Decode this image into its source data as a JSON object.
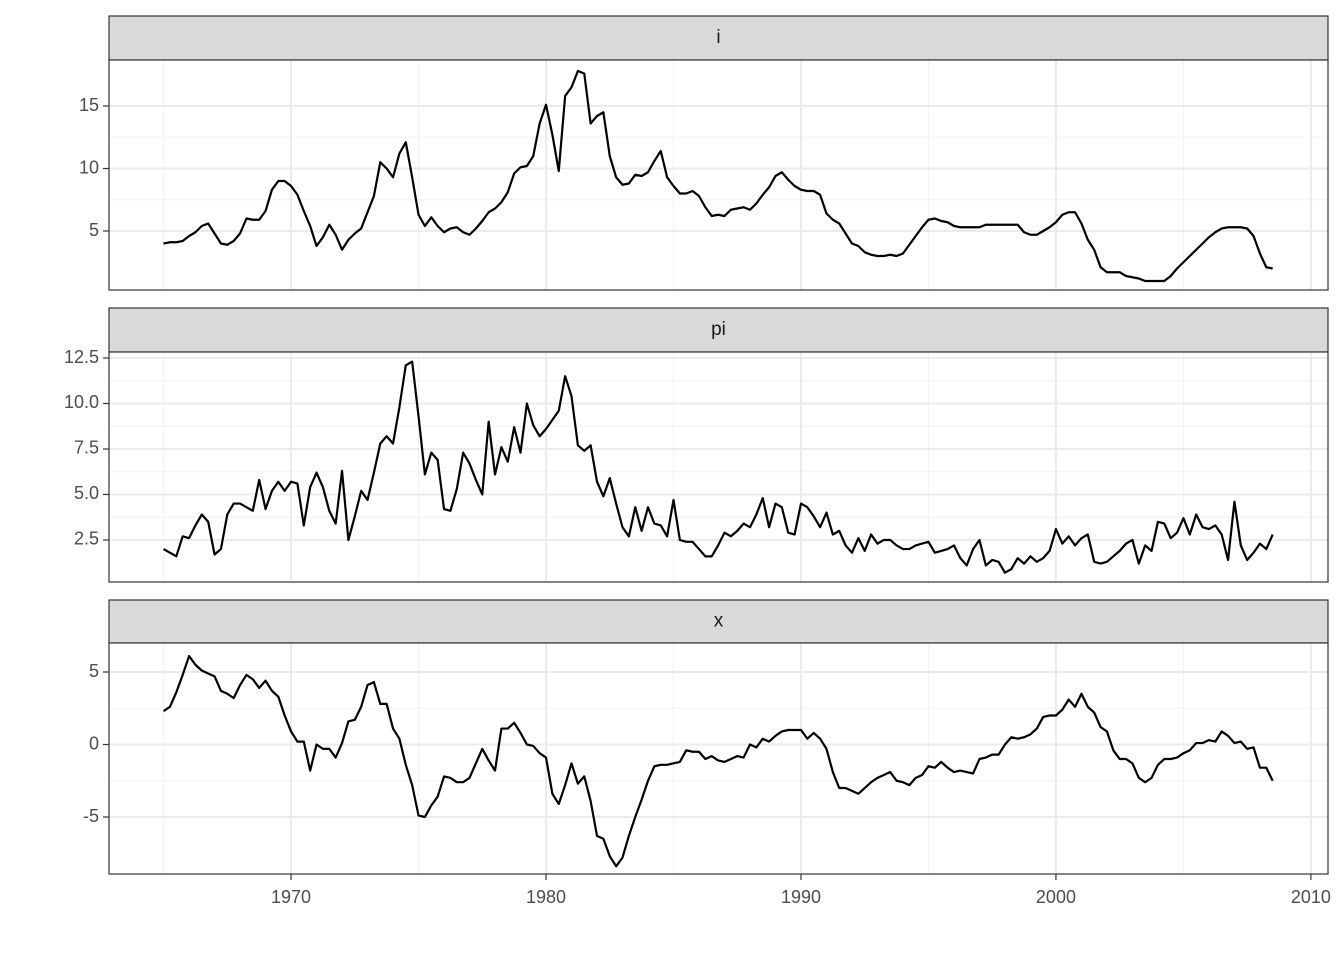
{
  "chart_data": {
    "type": "line",
    "color": "#000000",
    "grid": true,
    "xlim": [
      1962.86,
      2010.67
    ],
    "xticks": [
      1970,
      1980,
      1990,
      2000,
      2010
    ],
    "x": [
      1965,
      1965.25,
      1965.5,
      1965.75,
      1966,
      1966.25,
      1966.5,
      1966.75,
      1967,
      1967.25,
      1967.5,
      1967.75,
      1968,
      1968.25,
      1968.5,
      1968.75,
      1969,
      1969.25,
      1969.5,
      1969.75,
      1970,
      1970.25,
      1970.5,
      1970.75,
      1971,
      1971.25,
      1971.5,
      1971.75,
      1972,
      1972.25,
      1972.5,
      1972.75,
      1973,
      1973.25,
      1973.5,
      1973.75,
      1974,
      1974.25,
      1974.5,
      1974.75,
      1975,
      1975.25,
      1975.5,
      1975.75,
      1976,
      1976.25,
      1976.5,
      1976.75,
      1977,
      1977.25,
      1977.5,
      1977.75,
      1978,
      1978.25,
      1978.5,
      1978.75,
      1979,
      1979.25,
      1979.5,
      1979.75,
      1980,
      1980.25,
      1980.5,
      1980.75,
      1981,
      1981.25,
      1981.5,
      1981.75,
      1982,
      1982.25,
      1982.5,
      1982.75,
      1983,
      1983.25,
      1983.5,
      1983.75,
      1984,
      1984.25,
      1984.5,
      1984.75,
      1985,
      1985.25,
      1985.5,
      1985.75,
      1986,
      1986.25,
      1986.5,
      1986.75,
      1987,
      1987.25,
      1987.5,
      1987.75,
      1988,
      1988.25,
      1988.5,
      1988.75,
      1989,
      1989.25,
      1989.5,
      1989.75,
      1990,
      1990.25,
      1990.5,
      1990.75,
      1991,
      1991.25,
      1991.5,
      1991.75,
      1992,
      1992.25,
      1992.5,
      1992.75,
      1993,
      1993.25,
      1993.5,
      1993.75,
      1994,
      1994.25,
      1994.5,
      1994.75,
      1995,
      1995.25,
      1995.5,
      1995.75,
      1996,
      1996.25,
      1996.5,
      1996.75,
      1997,
      1997.25,
      1997.5,
      1997.75,
      1998,
      1998.25,
      1998.5,
      1998.75,
      1999,
      1999.25,
      1999.5,
      1999.75,
      2000,
      2000.25,
      2000.5,
      2000.75,
      2001,
      2001.25,
      2001.5,
      2001.75,
      2002,
      2002.25,
      2002.5,
      2002.75,
      2003,
      2003.25,
      2003.5,
      2003.75,
      2004,
      2004.25,
      2004.5,
      2004.75,
      2005,
      2005.25,
      2005.5,
      2005.75,
      2006,
      2006.25,
      2006.5,
      2006.75,
      2007,
      2007.25,
      2007.5,
      2007.75,
      2008,
      2008.25,
      2008.5
    ],
    "panels": [
      {
        "name": "i",
        "ylim": [
          0.28,
          18.68
        ],
        "yticks": [
          5,
          10,
          15
        ],
        "values": [
          4.0,
          4.1,
          4.1,
          4.2,
          4.6,
          4.9,
          5.4,
          5.6,
          4.8,
          4.0,
          3.9,
          4.2,
          4.8,
          6.0,
          5.9,
          5.9,
          6.6,
          8.3,
          9.0,
          9.0,
          8.6,
          7.9,
          6.6,
          5.4,
          3.8,
          4.5,
          5.5,
          4.7,
          3.5,
          4.3,
          4.8,
          5.2,
          6.5,
          7.8,
          10.5,
          10.0,
          9.3,
          11.2,
          12.1,
          9.3,
          6.3,
          5.4,
          6.1,
          5.4,
          4.9,
          5.2,
          5.3,
          4.9,
          4.7,
          5.2,
          5.8,
          6.5,
          6.8,
          7.3,
          8.1,
          9.6,
          10.1,
          10.2,
          11.0,
          13.6,
          15.1,
          12.7,
          9.8,
          15.8,
          16.5,
          17.8,
          17.6,
          13.6,
          14.2,
          14.5,
          11.0,
          9.3,
          8.7,
          8.8,
          9.5,
          9.4,
          9.7,
          10.6,
          11.4,
          9.3,
          8.6,
          8.0,
          8.0,
          8.2,
          7.8,
          6.9,
          6.2,
          6.3,
          6.2,
          6.7,
          6.8,
          6.9,
          6.7,
          7.2,
          7.9,
          8.5,
          9.4,
          9.7,
          9.1,
          8.6,
          8.3,
          8.2,
          8.2,
          7.9,
          6.4,
          5.9,
          5.6,
          4.8,
          4.0,
          3.8,
          3.3,
          3.1,
          3.0,
          3.0,
          3.1,
          3.0,
          3.2,
          3.9,
          4.6,
          5.3,
          5.9,
          6.0,
          5.8,
          5.7,
          5.4,
          5.3,
          5.3,
          5.3,
          5.3,
          5.5,
          5.5,
          5.5,
          5.5,
          5.5,
          5.5,
          4.9,
          4.7,
          4.7,
          5.0,
          5.3,
          5.7,
          6.3,
          6.5,
          6.5,
          5.6,
          4.3,
          3.5,
          2.1,
          1.7,
          1.7,
          1.7,
          1.4,
          1.3,
          1.2,
          1.0,
          1.0,
          1.0,
          1.0,
          1.4,
          2.0,
          2.5,
          3.0,
          3.5,
          4.0,
          4.5,
          4.9,
          5.2,
          5.3,
          5.3,
          5.3,
          5.2,
          4.6,
          3.2,
          2.1,
          2.0
        ]
      },
      {
        "name": "pi",
        "ylim": [
          0.19,
          12.83
        ],
        "yticks": [
          2.5,
          {
            "value": 5,
            "label": "5.0"
          },
          7.5,
          {
            "value": 10,
            "label": "10.0"
          },
          12.5
        ],
        "values": [
          2.0,
          1.8,
          1.6,
          2.7,
          2.6,
          3.3,
          3.9,
          3.5,
          1.7,
          2.0,
          3.9,
          4.5,
          4.5,
          4.3,
          4.1,
          5.8,
          4.2,
          5.2,
          5.7,
          5.2,
          5.7,
          5.6,
          3.3,
          5.4,
          6.2,
          5.4,
          4.1,
          3.4,
          6.3,
          2.5,
          3.8,
          5.2,
          4.7,
          6.2,
          7.8,
          8.2,
          7.8,
          9.8,
          12.1,
          12.3,
          9.3,
          6.1,
          7.3,
          6.9,
          4.2,
          4.1,
          5.3,
          7.3,
          6.7,
          5.8,
          5.0,
          9.0,
          6.1,
          7.6,
          6.8,
          8.7,
          7.3,
          10.0,
          8.8,
          8.2,
          8.6,
          9.1,
          9.6,
          11.5,
          10.4,
          7.7,
          7.4,
          7.7,
          5.7,
          4.9,
          5.9,
          4.5,
          3.2,
          2.7,
          4.3,
          3.0,
          4.3,
          3.4,
          3.3,
          2.7,
          4.7,
          2.5,
          2.4,
          2.4,
          2.0,
          1.6,
          1.6,
          2.2,
          2.9,
          2.7,
          3.0,
          3.4,
          3.2,
          3.9,
          4.8,
          3.2,
          4.5,
          4.3,
          2.9,
          2.8,
          4.5,
          4.3,
          3.8,
          3.2,
          4.0,
          2.8,
          3.0,
          2.2,
          1.8,
          2.6,
          1.9,
          2.8,
          2.3,
          2.5,
          2.5,
          2.2,
          2.0,
          2.0,
          2.2,
          2.3,
          2.4,
          1.8,
          1.9,
          2.0,
          2.2,
          1.5,
          1.1,
          2.0,
          2.5,
          1.1,
          1.4,
          1.3,
          0.7,
          0.9,
          1.5,
          1.2,
          1.6,
          1.3,
          1.5,
          1.9,
          3.1,
          2.3,
          2.7,
          2.2,
          2.6,
          2.8,
          1.3,
          1.2,
          1.3,
          1.6,
          1.9,
          2.3,
          2.5,
          1.2,
          2.2,
          1.9,
          3.5,
          3.4,
          2.6,
          2.9,
          3.7,
          2.8,
          3.9,
          3.2,
          3.1,
          3.3,
          2.8,
          1.4,
          4.6,
          2.2,
          1.4,
          1.8,
          2.3,
          2.0,
          2.8
        ]
      },
      {
        "name": "x",
        "ylim": [
          -8.93,
          7.0
        ],
        "yticks": [
          -5,
          0,
          5
        ],
        "values": [
          2.3,
          2.6,
          3.6,
          4.8,
          6.1,
          5.5,
          5.1,
          4.9,
          4.7,
          3.7,
          3.5,
          3.2,
          4.1,
          4.8,
          4.5,
          3.9,
          4.4,
          3.7,
          3.3,
          2.0,
          0.9,
          0.2,
          0.2,
          -1.8,
          0.0,
          -0.3,
          -0.3,
          -0.9,
          0.1,
          1.6,
          1.7,
          2.6,
          4.1,
          4.3,
          2.8,
          2.8,
          1.1,
          0.4,
          -1.4,
          -2.8,
          -4.9,
          -5.0,
          -4.2,
          -3.6,
          -2.2,
          -2.3,
          -2.6,
          -2.6,
          -2.3,
          -1.3,
          -0.3,
          -1.1,
          -1.8,
          1.1,
          1.1,
          1.5,
          0.8,
          0.0,
          -0.1,
          -0.6,
          -0.9,
          -3.4,
          -4.1,
          -2.8,
          -1.3,
          -2.7,
          -2.2,
          -3.9,
          -6.3,
          -6.5,
          -7.7,
          -8.4,
          -7.8,
          -6.3,
          -5.0,
          -3.8,
          -2.5,
          -1.5,
          -1.4,
          -1.4,
          -1.3,
          -1.2,
          -0.4,
          -0.5,
          -0.5,
          -1.0,
          -0.8,
          -1.1,
          -1.2,
          -1.0,
          -0.8,
          -0.9,
          0.0,
          -0.2,
          0.4,
          0.2,
          0.6,
          0.9,
          1.0,
          1.0,
          1.0,
          0.4,
          0.8,
          0.4,
          -0.3,
          -1.9,
          -3.0,
          -3.0,
          -3.2,
          -3.4,
          -3.0,
          -2.6,
          -2.3,
          -2.1,
          -1.9,
          -2.5,
          -2.6,
          -2.8,
          -2.3,
          -2.1,
          -1.5,
          -1.6,
          -1.2,
          -1.6,
          -1.9,
          -1.8,
          -1.9,
          -2.0,
          -1.0,
          -0.9,
          -0.7,
          -0.7,
          0.0,
          0.5,
          0.4,
          0.5,
          0.7,
          1.1,
          1.9,
          2.0,
          2.0,
          2.4,
          3.1,
          2.6,
          3.5,
          2.6,
          2.2,
          1.2,
          0.9,
          -0.4,
          -1.0,
          -1.0,
          -1.3,
          -2.3,
          -2.6,
          -2.3,
          -1.4,
          -1.0,
          -1.0,
          -0.9,
          -0.6,
          -0.4,
          0.1,
          0.1,
          0.3,
          0.2,
          0.9,
          0.6,
          0.1,
          0.2,
          -0.3,
          -0.2,
          -1.6,
          -1.6,
          -2.5
        ]
      }
    ]
  }
}
